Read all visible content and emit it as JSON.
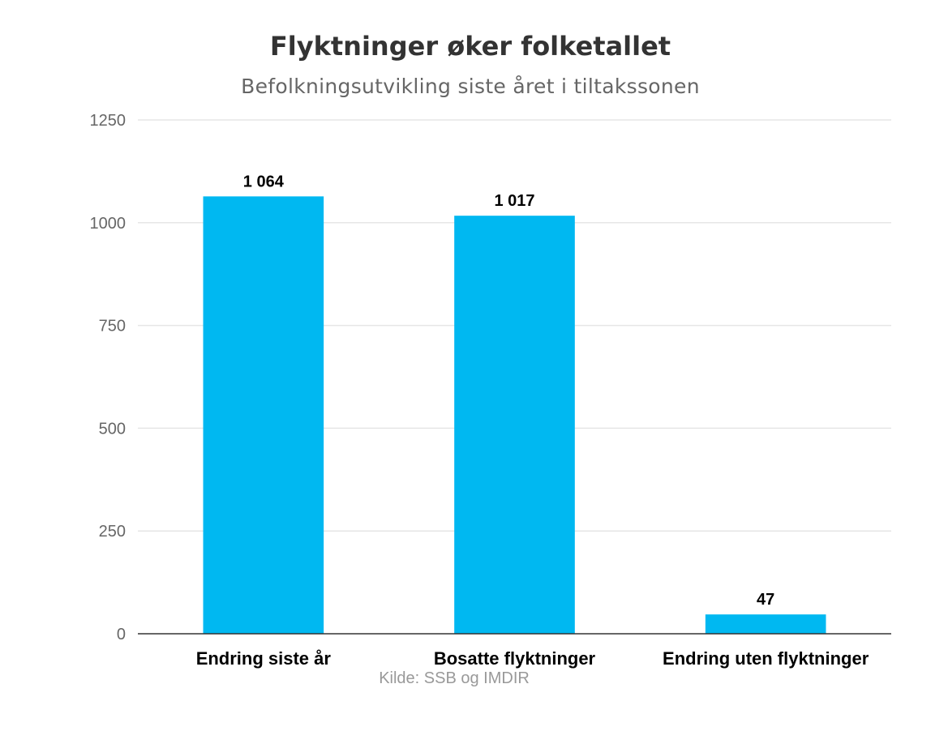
{
  "chart_data": {
    "type": "bar",
    "title": "Flyktninger øker folketallet",
    "subtitle": "Befolkningsutvikling siste året i tiltakssonen",
    "categories": [
      "Endring siste år",
      "Bosatte flyktninger",
      "Endring uten flyktninger"
    ],
    "values": [
      1064,
      1017,
      47
    ],
    "data_labels": [
      "1 064",
      "1 017",
      "47"
    ],
    "ylim": [
      0,
      1250
    ],
    "yticks": [
      0,
      250,
      500,
      750,
      1000,
      1250
    ],
    "xlabel": "",
    "ylabel": "",
    "grid": true,
    "legend": "none",
    "credits": "Kilde: SSB og IMDIR",
    "colors": {
      "bar": "#00b8f1",
      "grid": "#e6e6e6",
      "axis": "#333333",
      "tick_label": "#666666",
      "category_label": "#000000",
      "data_label": "#000000"
    }
  }
}
